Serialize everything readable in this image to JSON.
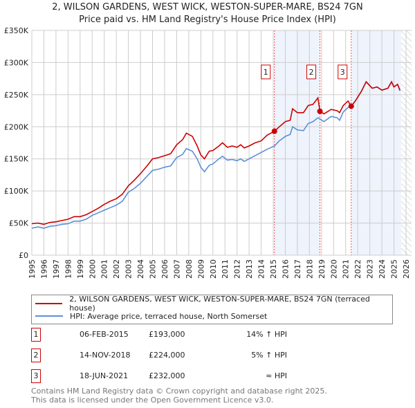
{
  "title": "2, WILSON GARDENS, WEST WICK, WESTON-SUPER-MARE, BS24 7GN",
  "subtitle": "Price paid vs. HM Land Registry's House Price Index (HPI)",
  "chart_data": {
    "type": "line",
    "xlim": [
      1995,
      2026
    ],
    "ylim": [
      0,
      350000
    ],
    "yticks": [
      {
        "v": 0,
        "l": "£0"
      },
      {
        "v": 50000,
        "l": "£50K"
      },
      {
        "v": 100000,
        "l": "£100K"
      },
      {
        "v": 150000,
        "l": "£150K"
      },
      {
        "v": 200000,
        "l": "£200K"
      },
      {
        "v": 250000,
        "l": "£250K"
      },
      {
        "v": 300000,
        "l": "£300K"
      },
      {
        "v": 350000,
        "l": "£350K"
      }
    ],
    "xticks": [
      "1995",
      "1996",
      "1997",
      "1998",
      "1999",
      "2000",
      "2001",
      "2002",
      "2003",
      "2004",
      "2005",
      "2006",
      "2007",
      "2008",
      "2009",
      "2010",
      "2011",
      "2012",
      "2013",
      "2014",
      "2015",
      "2016",
      "2017",
      "2018",
      "2019",
      "2020",
      "2021",
      "2022",
      "2023",
      "2024",
      "2025",
      "2026"
    ],
    "series": [
      {
        "name": "2, WILSON GARDENS, WEST WICK, WESTON-SUPER-MARE, BS24 7GN (terraced house)",
        "color": "#cc0000",
        "x": [
          1995,
          1995.5,
          1996,
          1996.5,
          1997,
          1997.5,
          1998,
          1998.5,
          1999,
          1999.5,
          2000,
          2000.5,
          2001,
          2001.5,
          2002,
          2002.5,
          2003,
          2003.5,
          2004,
          2004.5,
          2005,
          2005.5,
          2006,
          2006.5,
          2007,
          2007.5,
          2007.8,
          2008.3,
          2008.7,
          2009,
          2009.3,
          2009.7,
          2010,
          2010.5,
          2010.8,
          2011.2,
          2011.6,
          2012,
          2012.3,
          2012.6,
          2013,
          2013.5,
          2014,
          2014.5,
          2015.1,
          2015.5,
          2016,
          2016.4,
          2016.6,
          2017,
          2017.5,
          2017.9,
          2018.3,
          2018.7,
          2018.87,
          2019.2,
          2019.8,
          2020.3,
          2020.5,
          2020.8,
          2021.2,
          2021.46,
          2021.8,
          2022.3,
          2022.7,
          2023.2,
          2023.6,
          2024,
          2024.5,
          2024.8,
          2025,
          2025.3,
          2025.5
        ],
        "y": [
          49000,
          50000,
          48000,
          51000,
          52000,
          54000,
          56000,
          60000,
          60000,
          63000,
          68000,
          73000,
          79000,
          84000,
          88000,
          95000,
          108000,
          117000,
          127000,
          138000,
          150000,
          152000,
          155000,
          158000,
          172000,
          180000,
          190000,
          185000,
          170000,
          156000,
          150000,
          162000,
          163000,
          170000,
          175000,
          168000,
          170000,
          168000,
          172000,
          167000,
          170000,
          175000,
          178000,
          187000,
          193000,
          200000,
          208000,
          210000,
          228000,
          222000,
          222000,
          233000,
          235000,
          245000,
          224000,
          220000,
          227000,
          225000,
          222000,
          233000,
          240000,
          232000,
          240000,
          255000,
          270000,
          260000,
          262000,
          257000,
          260000,
          270000,
          262000,
          266000,
          257000
        ]
      },
      {
        "name": "HPI: Average price, terraced house, North Somerset",
        "color": "#5b8fd6",
        "x": [
          1995,
          1995.5,
          1996,
          1996.5,
          1997,
          1997.5,
          1998,
          1998.5,
          1999,
          1999.5,
          2000,
          2000.5,
          2001,
          2001.5,
          2002,
          2002.5,
          2003,
          2003.5,
          2004,
          2004.5,
          2005,
          2005.5,
          2006,
          2006.5,
          2007,
          2007.5,
          2007.8,
          2008.3,
          2008.7,
          2009,
          2009.3,
          2009.7,
          2010,
          2010.5,
          2010.8,
          2011.2,
          2011.6,
          2012,
          2012.3,
          2012.6,
          2013,
          2013.5,
          2014,
          2014.5,
          2015.1,
          2015.5,
          2016,
          2016.4,
          2016.6,
          2017,
          2017.5,
          2017.9,
          2018.3,
          2018.7,
          2018.87,
          2019.2,
          2019.8,
          2020.3,
          2020.5,
          2020.8,
          2021.2,
          2021.46,
          2021.8,
          2022.3,
          2022.7,
          2023.2,
          2023.6,
          2024,
          2024.5,
          2024.8,
          2025,
          2025.3,
          2025.5
        ],
        "y": [
          42000,
          44000,
          42000,
          45000,
          46000,
          48000,
          49000,
          53000,
          53000,
          56000,
          62000,
          66000,
          70000,
          74000,
          78000,
          84000,
          98000,
          104000,
          112000,
          122000,
          132000,
          134000,
          137000,
          139000,
          152000,
          157000,
          166000,
          162000,
          150000,
          137000,
          130000,
          140000,
          142000,
          150000,
          154000,
          148000,
          149000,
          147000,
          150000,
          146000,
          150000,
          155000,
          160000,
          165000,
          170000,
          178000,
          185000,
          188000,
          200000,
          195000,
          194000,
          205000,
          208000,
          214000,
          212000,
          208000,
          216000,
          214000,
          210000,
          223000,
          230000,
          232000,
          240000,
          255000,
          270000,
          260000,
          262000,
          257000,
          260000,
          270000,
          262000,
          266000,
          256000
        ]
      }
    ],
    "sales": [
      {
        "label": "1",
        "x": 2015.1,
        "y": 193000
      },
      {
        "label": "2",
        "x": 2018.87,
        "y": 224000
      },
      {
        "label": "3",
        "x": 2021.46,
        "y": 232000
      }
    ],
    "shaded": [
      [
        2015.1,
        2018.87
      ],
      [
        2021.46,
        2026
      ]
    ],
    "hatch_from": 2025.6
  },
  "legend": [
    "2, WILSON GARDENS, WEST WICK, WESTON-SUPER-MARE, BS24 7GN (terraced house)",
    "HPI: Average price, terraced house, North Somerset"
  ],
  "table": [
    {
      "n": "1",
      "date": "06-FEB-2015",
      "price": "£193,000",
      "hpi": "14% ↑ HPI"
    },
    {
      "n": "2",
      "date": "14-NOV-2018",
      "price": "£224,000",
      "hpi": "5% ↑ HPI"
    },
    {
      "n": "3",
      "date": "18-JUN-2021",
      "price": "£232,000",
      "hpi": "≈ HPI"
    }
  ],
  "footer": [
    "Contains HM Land Registry data © Crown copyright and database right 2025.",
    "This data is licensed under the Open Government Licence v3.0."
  ]
}
